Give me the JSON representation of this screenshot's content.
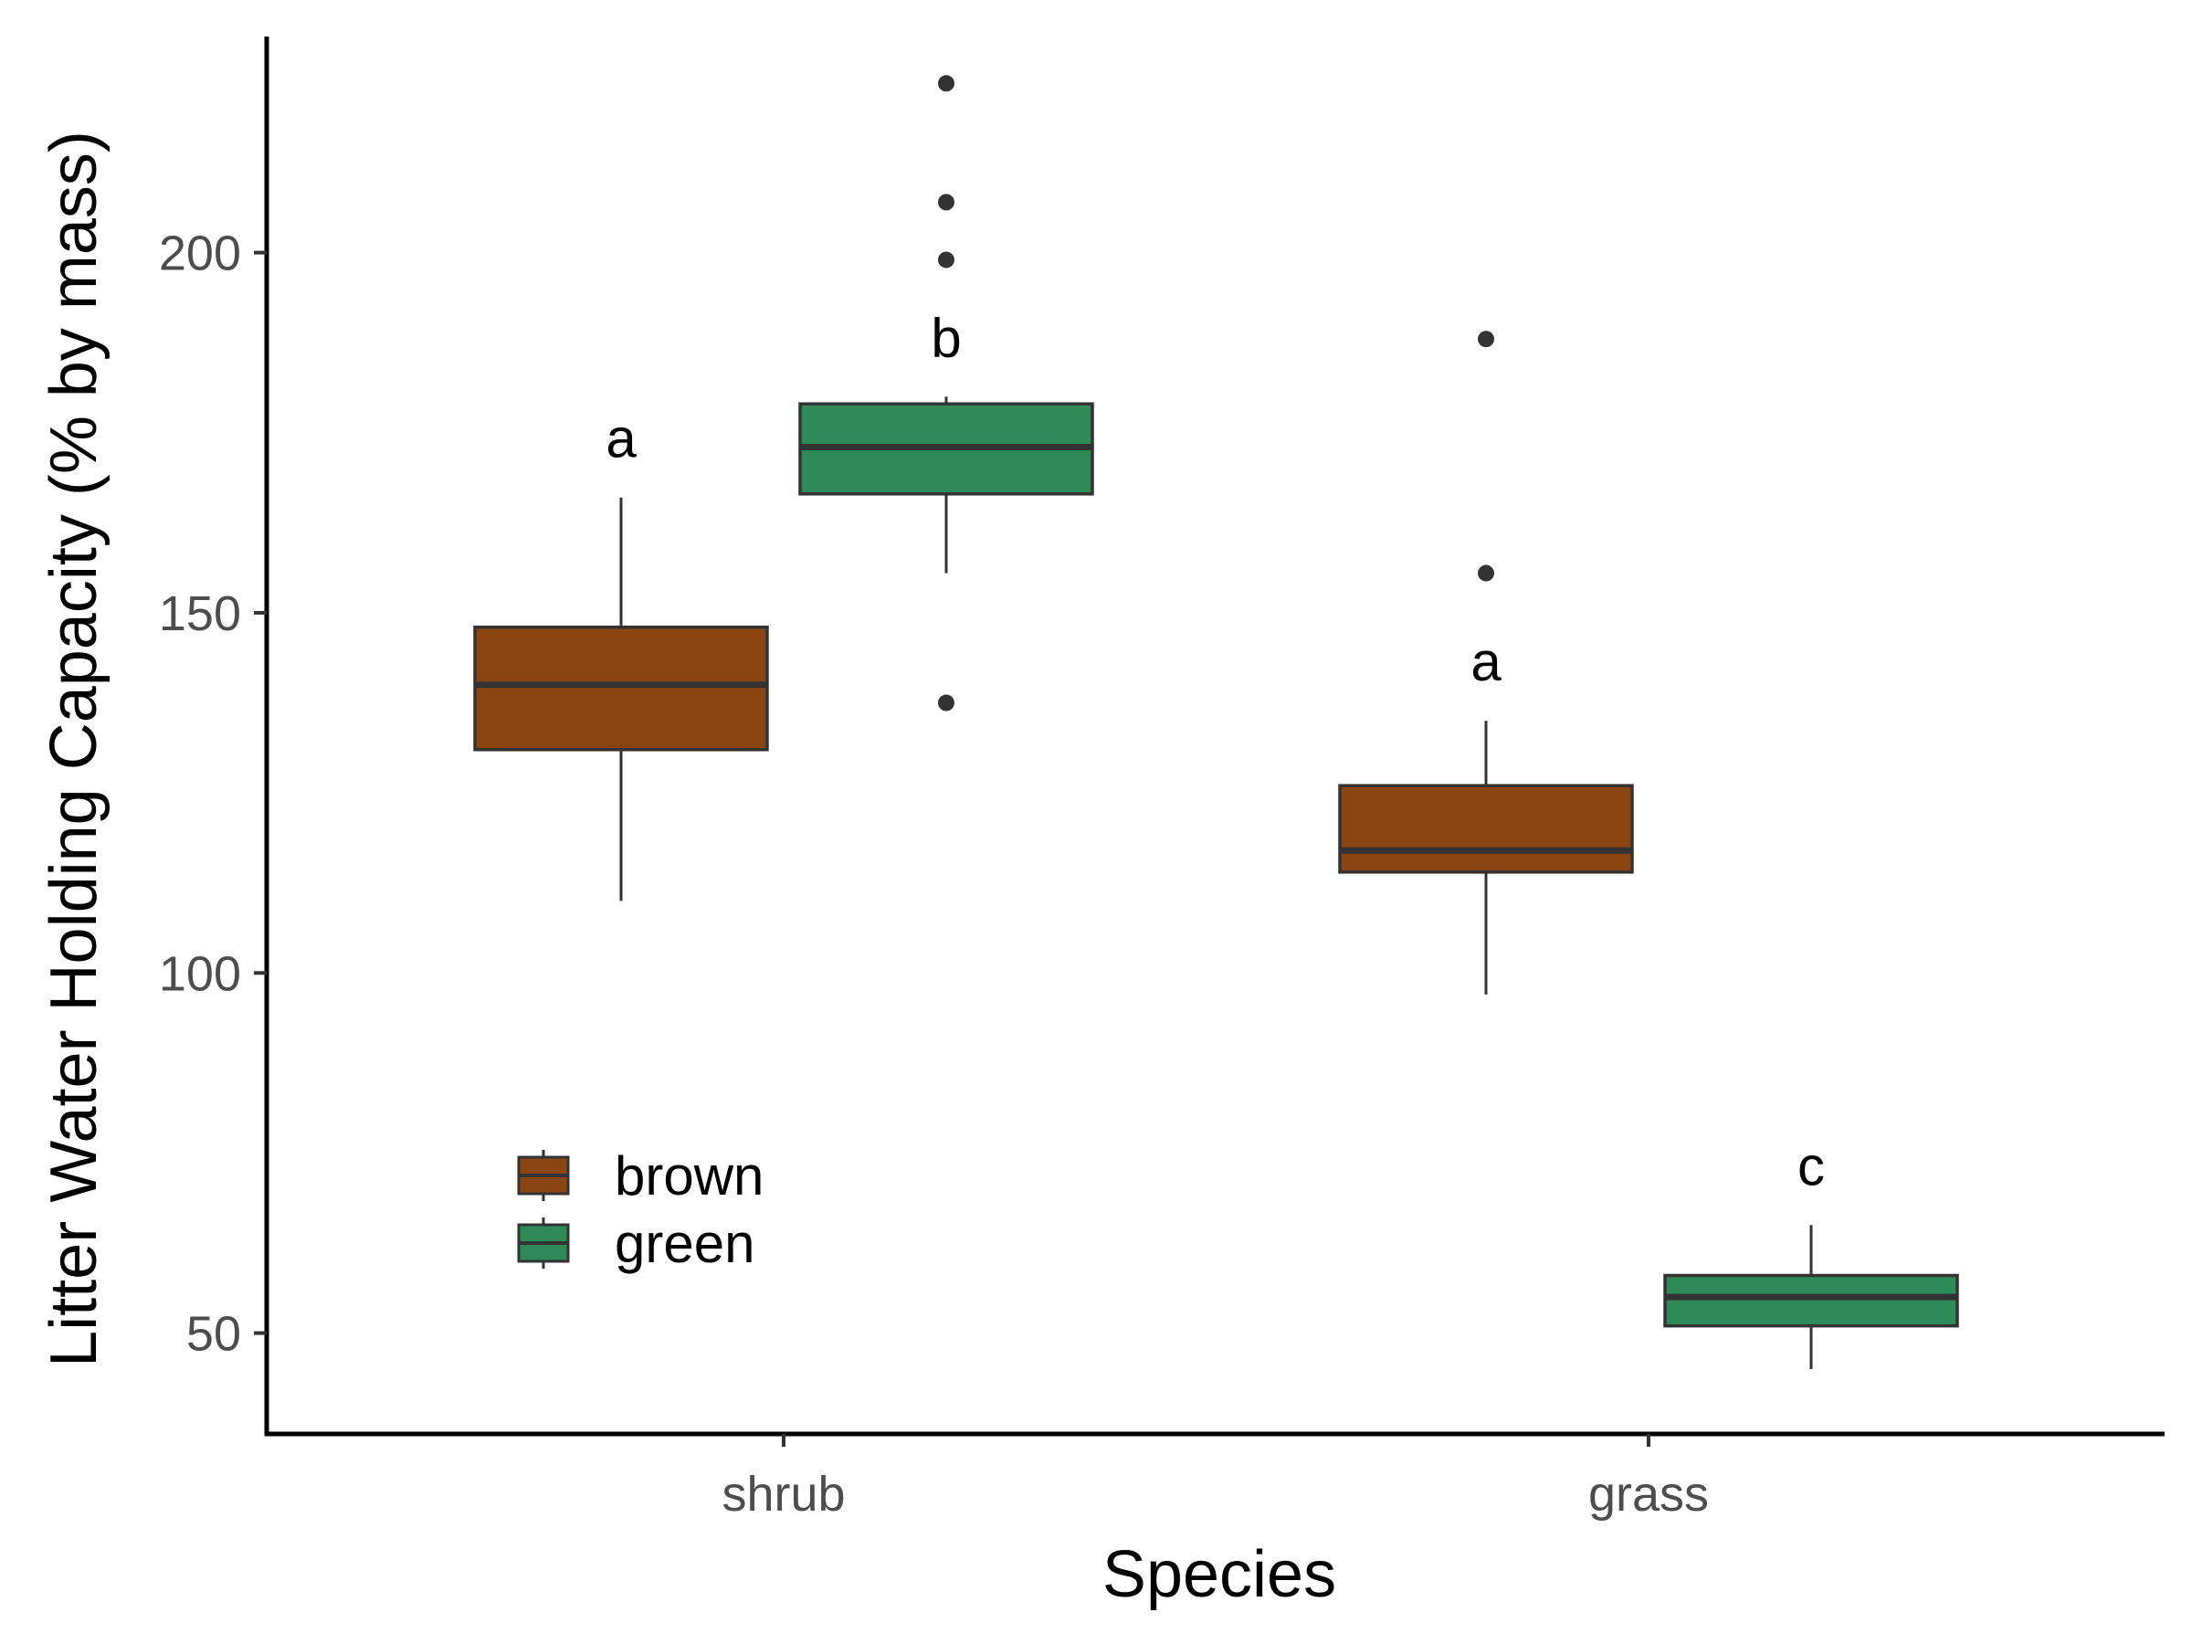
{
  "chart_data": {
    "type": "box",
    "xlabel": "Species",
    "ylabel": "Litter Water Holding Capacity (% by mass)",
    "categories": [
      "shrub",
      "grass"
    ],
    "ylim": [
      36,
      230
    ],
    "yticks": [
      50,
      100,
      150,
      200
    ],
    "grid": false,
    "legend_position": "bottom-left",
    "series": [
      {
        "name": "brown",
        "color": "#8B4513",
        "boxes": [
          {
            "category": "shrub",
            "whisker_low": 110,
            "q1": 131,
            "median": 140,
            "q3": 148,
            "whisker_high": 166,
            "outliers": [],
            "label": "a"
          },
          {
            "category": "grass",
            "whisker_low": 97,
            "q1": 114,
            "median": 117,
            "q3": 126,
            "whisker_high": 135,
            "outliers": [
              155.5,
              188
            ],
            "label": "a"
          }
        ]
      },
      {
        "name": "green",
        "color": "#2E8B57",
        "boxes": [
          {
            "category": "shrub",
            "whisker_low": 155.5,
            "q1": 166.5,
            "median": 173,
            "q3": 179,
            "whisker_high": 180,
            "outliers": [
              137.5,
              199,
              207,
              223.5
            ],
            "label": "b"
          },
          {
            "category": "grass",
            "whisker_low": 45,
            "q1": 51,
            "median": 55,
            "q3": 58,
            "whisker_high": 65,
            "outliers": [],
            "label": "c"
          }
        ]
      }
    ]
  }
}
